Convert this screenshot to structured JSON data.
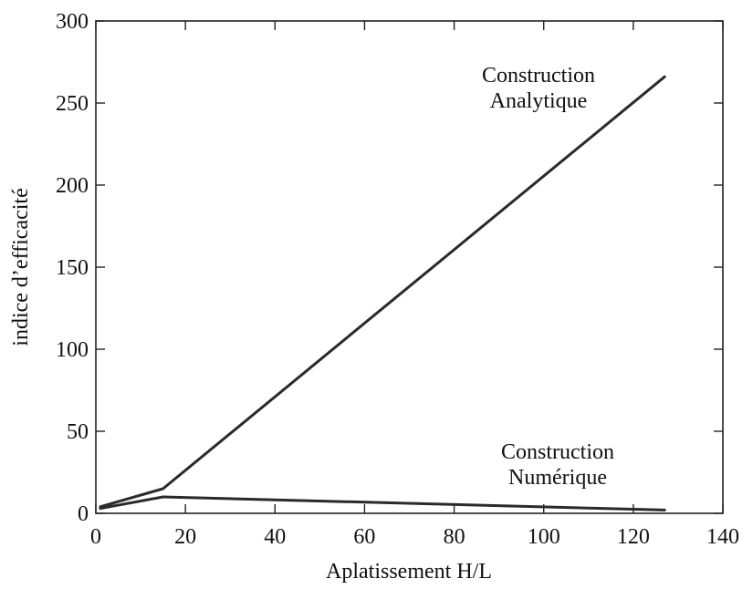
{
  "chart_data": {
    "type": "line",
    "title": "",
    "xlabel": "Aplatissement H/L",
    "ylabel": "indice d’efficacité",
    "xlim": [
      0,
      140
    ],
    "ylim": [
      0,
      300
    ],
    "xticks": [
      0,
      20,
      40,
      60,
      80,
      100,
      120,
      140
    ],
    "yticks": [
      0,
      50,
      100,
      150,
      200,
      250,
      300
    ],
    "grid": false,
    "legend": "none",
    "series": [
      {
        "label_lines": [
          "Construction",
          "Analytique"
        ],
        "x": [
          1,
          15,
          127
        ],
        "y": [
          4,
          15,
          266
        ]
      },
      {
        "label_lines": [
          "Construction",
          "Numérique"
        ],
        "x": [
          1,
          15,
          127
        ],
        "y": [
          3,
          10,
          2
        ]
      }
    ],
    "line_color": "#2a2a2a"
  }
}
